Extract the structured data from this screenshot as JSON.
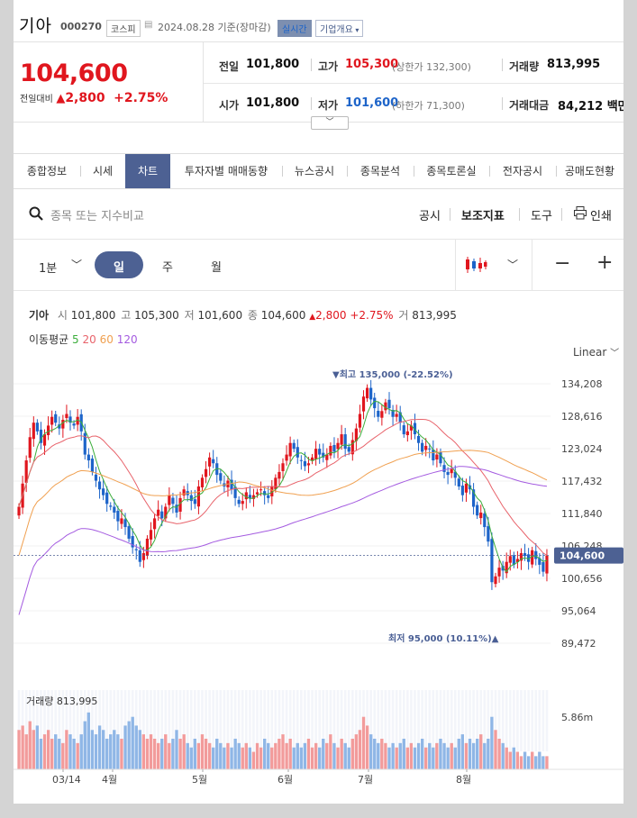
{
  "stock": {
    "name": "기아",
    "code": "000270",
    "market": "코스피",
    "date": "2024.08.28 기준(장마감)",
    "realtime_label": "실시간",
    "company_label": "기업개요",
    "price": "104,600",
    "change_label": "전일대비",
    "change_amount": "2,800",
    "change_pct": "+2.75%"
  },
  "quote": {
    "prev_label": "전일",
    "prev_value": "101,800",
    "high_label": "고가",
    "high_value": "105,300",
    "upper_limit": "(상한가 132,300)",
    "volume_label": "거래량",
    "volume_value": "813,995",
    "open_label": "시가",
    "open_value": "101,800",
    "low_label": "저가",
    "low_value": "101,600",
    "lower_limit": "(하한가 71,300)",
    "amount_label": "거래대금",
    "amount_value": "84,212 백만"
  },
  "tabs": [
    "종합정보",
    "시세",
    "차트",
    "투자자별 매매동향",
    "뉴스공시",
    "종목분석",
    "종목토론실",
    "전자공시",
    "공매도현황"
  ],
  "active_tab": "차트",
  "toolbar": {
    "search_placeholder": "종목 또는 지수비교",
    "notice": "공시",
    "indicator": "보조지표",
    "tools": "도구",
    "print": "인쇄",
    "period_1min": "1분",
    "period_day": "일",
    "period_week": "주",
    "period_month": "월"
  },
  "legend": {
    "name": "기아",
    "o_label": "시",
    "o_value": "101,800",
    "h_label": "고",
    "h_value": "105,300",
    "l_label": "저",
    "l_value": "101,600",
    "c_label": "종",
    "c_value": "104,600",
    "chg": "2,800",
    "chg_pct": "+2.75%",
    "v_label": "거",
    "v_value": "813,995",
    "ma_label": "이동평균",
    "ma5": "5",
    "ma20": "20",
    "ma60": "60",
    "ma120": "120",
    "scale_mode": "Linear"
  },
  "colors": {
    "up": "#e0161e",
    "down": "#1d64c9",
    "ma5": "#3cae3c",
    "ma20": "#e8636b",
    "ma60": "#f0a050",
    "ma120": "#a45be0",
    "accent": "#4d6193"
  },
  "chart_data": {
    "type": "candlestick",
    "y_ticks": [
      "134,208",
      "128,616",
      "123,024",
      "117,432",
      "111,840",
      "106,248",
      "100,656",
      "95,064",
      "89,472"
    ],
    "ylim": [
      89472,
      134208
    ],
    "x_ticks": [
      "03/14",
      "4월",
      "5월",
      "6월",
      "7월",
      "8월"
    ],
    "current_price_label": "104,600",
    "max_label": "▼최고 135,000 (-22.52%)",
    "min_label": "최저 95,000 (10.11%)▲",
    "volume_label": "거래량 813,995",
    "volume_tick": "5.86m",
    "closes": [
      113000,
      117000,
      121000,
      125000,
      127500,
      126000,
      124000,
      125500,
      127000,
      128500,
      127500,
      126500,
      128000,
      129000,
      127500,
      127000,
      128500,
      126000,
      122000,
      121000,
      119000,
      117500,
      116000,
      115000,
      113500,
      113000,
      112000,
      110500,
      111000,
      109500,
      107500,
      106000,
      105500,
      103500,
      105000,
      107500,
      109000,
      111000,
      112500,
      111000,
      113000,
      115000,
      113500,
      112000,
      114500,
      116000,
      115000,
      114000,
      113500,
      116500,
      118000,
      119500,
      121500,
      120500,
      118500,
      117500,
      116500,
      117500,
      116000,
      114500,
      113500,
      114000,
      115500,
      114500,
      115000,
      115500,
      116000,
      115000,
      114500,
      116500,
      118000,
      119000,
      120500,
      122000,
      124000,
      123000,
      121500,
      121000,
      120000,
      120500,
      121500,
      123000,
      122000,
      121500,
      122000,
      123500,
      122500,
      124000,
      125500,
      123000,
      122500,
      124500,
      126500,
      129000,
      132000,
      133500,
      131500,
      130000,
      128500,
      129500,
      131000,
      130000,
      128500,
      129000,
      127500,
      125500,
      126000,
      127000,
      125500,
      124000,
      122500,
      123500,
      123000,
      121000,
      122000,
      120500,
      119000,
      118500,
      119500,
      118000,
      116500,
      115000,
      117000,
      116000,
      113000,
      111500,
      112000,
      109500,
      107000,
      100000,
      101000,
      102500,
      102000,
      103500,
      104500,
      103000,
      104000,
      105000,
      104500,
      103500,
      105500,
      104000,
      103000,
      101800,
      104600
    ],
    "volume_values": [
      0.9,
      1.0,
      0.8,
      1.1,
      0.9,
      1.0,
      0.7,
      0.8,
      0.9,
      0.7,
      0.8,
      0.7,
      0.6,
      0.9,
      0.8,
      0.7,
      0.6,
      0.8,
      1.1,
      1.3,
      0.9,
      0.8,
      1.0,
      0.9,
      0.7,
      0.8,
      0.9,
      0.8,
      0.7,
      1.0,
      1.1,
      1.2,
      1.0,
      0.9,
      0.8,
      0.7,
      0.8,
      0.7,
      0.6,
      0.7,
      0.8,
      0.6,
      0.7,
      0.9,
      0.7,
      0.8,
      0.6,
      0.5,
      0.7,
      0.6,
      0.8,
      0.7,
      0.6,
      0.5,
      0.7,
      0.6,
      0.5,
      0.6,
      0.5,
      0.7,
      0.6,
      0.5,
      0.6,
      0.5,
      0.4,
      0.6,
      0.5,
      0.7,
      0.6,
      0.5,
      0.6,
      0.7,
      0.8,
      0.6,
      0.7,
      0.5,
      0.6,
      0.5,
      0.6,
      0.7,
      0.5,
      0.6,
      0.5,
      0.7,
      0.6,
      0.8,
      0.6,
      0.5,
      0.7,
      0.6,
      0.5,
      0.7,
      0.8,
      0.9,
      1.2,
      1.0,
      0.8,
      0.7,
      0.6,
      0.7,
      0.6,
      0.5,
      0.6,
      0.5,
      0.6,
      0.7,
      0.5,
      0.6,
      0.5,
      0.6,
      0.7,
      0.5,
      0.6,
      0.5,
      0.6,
      0.7,
      0.6,
      0.5,
      0.6,
      0.5,
      0.7,
      0.8,
      0.6,
      0.7,
      0.6,
      0.7,
      0.8,
      0.6,
      0.7,
      1.2,
      0.9,
      0.7,
      0.6,
      0.5,
      0.4,
      0.5,
      0.4,
      0.3,
      0.4,
      0.3,
      0.4,
      0.3,
      0.4,
      0.3,
      0.3
    ]
  }
}
